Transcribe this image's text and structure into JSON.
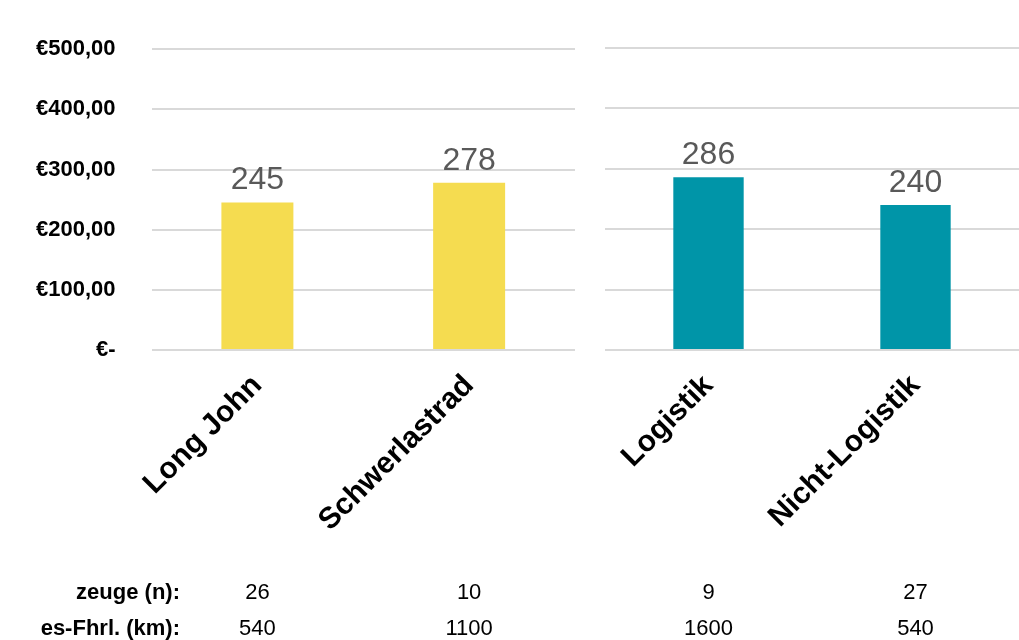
{
  "chart_data": [
    {
      "type": "bar",
      "categories": [
        "Long John",
        "Schwerlastrad"
      ],
      "values": [
        245,
        278
      ],
      "color": "#f5dc50",
      "ylim": [
        0,
        500
      ],
      "yticks": [
        {
          "value": 0,
          "label": "€-"
        },
        {
          "value": 100,
          "label": "€100,00"
        },
        {
          "value": 200,
          "label": "€200,00"
        },
        {
          "value": 300,
          "label": "€300,00"
        },
        {
          "value": 400,
          "label": "€400,00"
        },
        {
          "value": 500,
          "label": "€500,00"
        }
      ],
      "grid": "y",
      "data_labels": true,
      "annotations": [
        "zeuge (n):",
        "26",
        "10",
        "es-Fhrl. (km):",
        "540",
        "1100"
      ]
    },
    {
      "type": "bar",
      "categories": [
        "Logistik",
        "Nicht-Logistik"
      ],
      "values": [
        286,
        240
      ],
      "color": "#0095a8",
      "ylim": [
        0,
        500
      ],
      "yticks": [
        0,
        100,
        200,
        300,
        400,
        500
      ],
      "grid": "y",
      "data_labels": true,
      "tick_labels": "x",
      "annotations": [
        "9",
        "27",
        "1600",
        "540"
      ]
    }
  ]
}
